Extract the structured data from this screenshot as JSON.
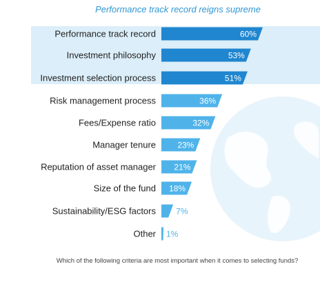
{
  "chart_data": {
    "type": "bar",
    "orientation": "horizontal",
    "title": "Performance track record reigns supreme",
    "caption": "Which of the following criteria are most important when it comes to selecting funds?",
    "categories": [
      "Performance track record",
      "Investment philosophy",
      "Investment selection process",
      "Risk management process",
      "Fees/Expense ratio",
      "Manager tenure",
      "Reputation of asset manager",
      "Size of the fund",
      "Sustainability/ESG factors",
      "Other"
    ],
    "values": [
      60,
      53,
      51,
      36,
      32,
      23,
      21,
      18,
      7,
      1
    ],
    "value_labels": [
      "60%",
      "53%",
      "51%",
      "36%",
      "32%",
      "23%",
      "21%",
      "18%",
      "7%",
      "1%"
    ],
    "highlighted_top": 3,
    "xlim": [
      0,
      100
    ],
    "grid": false,
    "legend": "none"
  },
  "colors": {
    "title": "#2f96d3",
    "highlight_band": "#dbeef9",
    "bar_highlight": "#1f86cf",
    "bar_regular": "#4fb3ea",
    "globe_light": "#e5f3fb",
    "globe_land": "#ffffff",
    "value_text_inside": "#ffffff",
    "value_text_outside": "#4fb3ea"
  }
}
